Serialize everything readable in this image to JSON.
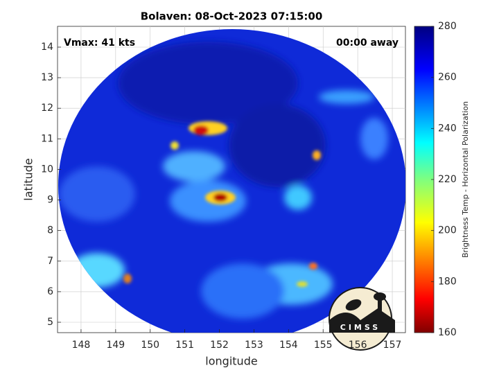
{
  "title": "Bolaven: 08-Oct-2023 07:15:00",
  "annotations": {
    "left": "Vmax: 41 kts",
    "right": "00:00 away"
  },
  "x_axis": {
    "label": "longitude",
    "lim": [
      147.32,
      157.38
    ],
    "ticks": [
      148,
      149,
      150,
      151,
      152,
      153,
      154,
      155,
      156,
      157
    ]
  },
  "y_axis": {
    "label": "latitude",
    "lim": [
      4.66,
      14.68
    ],
    "ticks": [
      5,
      6,
      7,
      8,
      9,
      10,
      11,
      12,
      13,
      14
    ]
  },
  "grid": true,
  "colorbar": {
    "label": "Brightness Temp - Horizontal Polarization",
    "lim": [
      160,
      280
    ],
    "ticks": [
      160,
      180,
      200,
      220,
      240,
      260,
      280
    ]
  },
  "logo": "CIMSS"
}
